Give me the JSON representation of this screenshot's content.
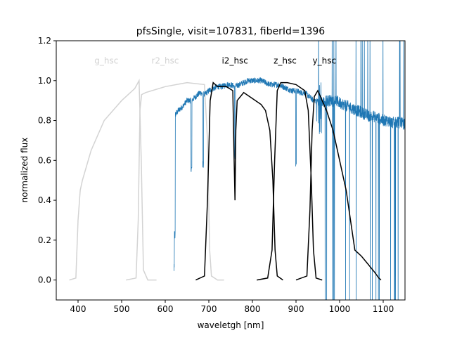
{
  "chart_data": {
    "type": "line",
    "title": "pfsSingle, visit=107831, fiberId=1396",
    "xlabel": "waveletgh [nm]",
    "ylabel": "normalized flux",
    "xlim": [
      350,
      1150
    ],
    "ylim": [
      -0.1,
      1.2
    ],
    "xticks": [
      400,
      500,
      600,
      700,
      800,
      900,
      1000,
      1100
    ],
    "yticks": [
      0.0,
      0.2,
      0.4,
      0.6,
      0.8,
      1.0,
      1.2
    ],
    "grid": false,
    "colors": {
      "spectrum": "#1f77b4",
      "filter_inactive": "#d3d3d3",
      "filter_active": "#000000"
    },
    "spectrum": {
      "name": "flux",
      "x": [
        620,
        630,
        640,
        650,
        660,
        670,
        680,
        690,
        700,
        710,
        720,
        730,
        740,
        750,
        760,
        770,
        780,
        790,
        800,
        810,
        820,
        830,
        840,
        850,
        860,
        870,
        880,
        890,
        900,
        910,
        920,
        930,
        940,
        950,
        960,
        970,
        980,
        990,
        1000,
        1010,
        1020,
        1030,
        1040,
        1050,
        1060,
        1070,
        1080,
        1090,
        1100,
        1110,
        1120,
        1130,
        1140,
        1150
      ],
      "y": [
        0.82,
        0.85,
        0.87,
        0.9,
        0.9,
        0.92,
        0.94,
        0.93,
        0.95,
        0.96,
        0.97,
        0.97,
        0.98,
        0.98,
        0.97,
        0.98,
        0.99,
        1.0,
        1.0,
        1.0,
        1.0,
        0.99,
        0.98,
        0.98,
        0.98,
        0.97,
        0.96,
        0.95,
        0.95,
        0.94,
        0.94,
        0.92,
        0.9,
        0.9,
        0.89,
        0.9,
        0.9,
        0.9,
        0.89,
        0.88,
        0.87,
        0.86,
        0.85,
        0.84,
        0.83,
        0.82,
        0.82,
        0.81,
        0.8,
        0.8,
        0.79,
        0.79,
        0.79,
        0.78
      ],
      "absorption_dips": [
        [
          620,
          0.03
        ],
        [
          622,
          0.2
        ],
        [
          660,
          0.53
        ],
        [
          687,
          0.55
        ],
        [
          760,
          0.6
        ],
        [
          900,
          0.55
        ]
      ]
    },
    "filters": [
      {
        "name": "g_hsc",
        "active": false,
        "label_x": 465,
        "x": [
          380,
          395,
          400,
          405,
          410,
          430,
          460,
          500,
          530,
          540,
          545,
          550,
          560,
          580
        ],
        "y": [
          0,
          0.01,
          0.3,
          0.45,
          0.5,
          0.65,
          0.8,
          0.9,
          0.96,
          1.0,
          0.6,
          0.05,
          0,
          0
        ]
      },
      {
        "name": "r2_hsc",
        "active": false,
        "label_x": 600,
        "x": [
          510,
          533,
          538,
          542,
          546,
          555,
          600,
          650,
          690,
          697,
          702,
          706,
          720,
          735
        ],
        "y": [
          0,
          0.01,
          0.3,
          0.85,
          0.93,
          0.94,
          0.97,
          0.99,
          0.98,
          0.7,
          0.15,
          0.02,
          0,
          0
        ]
      },
      {
        "name": "i2_hsc",
        "active": true,
        "label_x": 760,
        "x": [
          670,
          690,
          697,
          703,
          710,
          720,
          740,
          755,
          758,
          760,
          762,
          765,
          780,
          800,
          820,
          830,
          840,
          847,
          852,
          857,
          870
        ],
        "y": [
          0,
          0.02,
          0.4,
          0.9,
          0.99,
          0.97,
          0.97,
          0.95,
          0.6,
          0.4,
          0.75,
          0.9,
          0.94,
          0.91,
          0.88,
          0.85,
          0.75,
          0.5,
          0.15,
          0.02,
          0
        ],
        "tail": [
          [
            700,
            0.99
          ]
        ]
      },
      {
        "name": "z_hsc",
        "active": true,
        "label_x": 875,
        "x": [
          810,
          835,
          845,
          851,
          857,
          865,
          880,
          900,
          920,
          928,
          935,
          940,
          946,
          960
        ],
        "y": [
          0,
          0.01,
          0.15,
          0.6,
          0.95,
          0.99,
          0.99,
          0.98,
          0.95,
          0.85,
          0.5,
          0.15,
          0.01,
          0
        ]
      },
      {
        "name": "y_hsc",
        "active": true,
        "label_x": 965,
        "x": [
          900,
          925,
          932,
          937,
          942,
          950,
          960,
          970,
          985,
          1000,
          1015,
          1025,
          1035,
          1050,
          1065,
          1080,
          1090,
          1095
        ],
        "y": [
          0,
          0.02,
          0.35,
          0.75,
          0.92,
          0.95,
          0.9,
          0.85,
          0.75,
          0.6,
          0.45,
          0.3,
          0.15,
          0.12,
          0.08,
          0.04,
          0.01,
          0
        ]
      }
    ]
  }
}
